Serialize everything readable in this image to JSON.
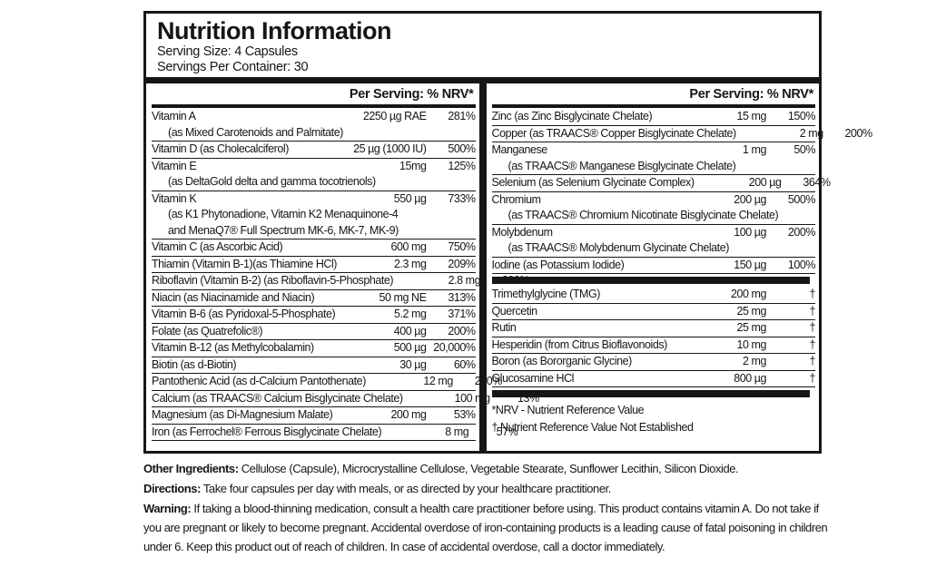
{
  "header": {
    "title": "Nutrition Information",
    "serving_size": "Serving Size: 4 Capsules",
    "servings_per_container": "Servings Per Container: 30"
  },
  "columns": {
    "header_label": "Per Serving: % NRV*",
    "left": {
      "rows": [
        {
          "name": "Vitamin A",
          "amount": "2250 µg RAE",
          "nrv": "281%",
          "sub": [
            "(as Mixed Carotenoids and Palmitate)"
          ]
        },
        {
          "name": "Vitamin D (as Cholecalciferol)",
          "amount": "25 µg (1000 IU)",
          "nrv": "500%"
        },
        {
          "name": "Vitamin E",
          "amount": "15mg",
          "nrv": "125%",
          "sub": [
            "(as DeltaGold delta and gamma tocotrienols)"
          ]
        },
        {
          "name": "Vitamin K",
          "amount": "550 µg",
          "nrv": "733%",
          "sub": [
            "(as K1 Phytonadione, Vitamin K2 Menaquinone-4",
            "and MenaQ7® Full Spectrum MK-6, MK-7, MK-9)"
          ]
        },
        {
          "name": "Vitamin C (as Ascorbic Acid)",
          "amount": "600 mg",
          "nrv": "750%"
        },
        {
          "name": "Thiamin (Vitamin B-1)(as Thiamine HCl)",
          "amount": "2.3 mg",
          "nrv": "209%"
        },
        {
          "name": "Riboflavin (Vitamin B-2) (as Riboflavin-5-Phosphate)",
          "amount": "2.8 mg",
          "nrv": "200%"
        },
        {
          "name": "Niacin (as Niacinamide and Niacin)",
          "amount": "50 mg NE",
          "nrv": "313%"
        },
        {
          "name": "Vitamin B-6 (as Pyridoxal-5-Phosphate)",
          "amount": "5.2 mg",
          "nrv": "371%"
        },
        {
          "name": "Folate (as Quatrefolic®)",
          "amount": "400 µg",
          "nrv": "200%"
        },
        {
          "name": "Vitamin B-12 (as Methylcobalamin)",
          "amount": "500 µg",
          "nrv": "20,000%"
        },
        {
          "name": "Biotin (as d-Biotin)",
          "amount": "30 µg",
          "nrv": "60%"
        },
        {
          "name": "Pantothenic Acid (as d-Calcium Pantothenate)",
          "amount": "12 mg",
          "nrv": "200%"
        },
        {
          "name": "Calcium (as TRAACS® Calcium Bisglycinate Chelate)",
          "amount": "100 mg",
          "nrv": "13%"
        },
        {
          "name": "Magnesium (as Di-Magnesium Malate)",
          "amount": "200 mg",
          "nrv": "53%"
        },
        {
          "name": "Iron (as Ferrochel® Ferrous Bisglycinate Chelate)",
          "amount": "8 mg",
          "nrv": "57%"
        }
      ]
    },
    "right": {
      "group1": [
        {
          "name": "Zinc (as Zinc Bisglycinate Chelate)",
          "amount": "15 mg",
          "nrv": "150%"
        },
        {
          "name": "Copper (as TRAACS® Copper Bisglycinate Chelate)",
          "amount": "2 mg",
          "nrv": "200%"
        },
        {
          "name": "Manganese",
          "amount": "1 mg",
          "nrv": "50%",
          "sub": [
            "(as TRAACS® Manganese Bisglycinate Chelate)"
          ]
        },
        {
          "name": "Selenium (as Selenium Glycinate Complex)",
          "amount": "200 µg",
          "nrv": "364%"
        },
        {
          "name": "Chromium",
          "amount": "200 µg",
          "nrv": "500%",
          "sub": [
            "(as TRAACS® Chromium Nicotinate Bisglycinate Chelate)"
          ]
        },
        {
          "name": "Molybdenum",
          "amount": "100 µg",
          "nrv": "200%",
          "sub": [
            "(as TRAACS® Molybdenum Glycinate Chelate)"
          ]
        },
        {
          "name": "Iodine (as Potassium Iodide)",
          "amount": "150 µg",
          "nrv": "100%"
        }
      ],
      "group2": [
        {
          "name": "Trimethylglycine (TMG)",
          "amount": "200 mg",
          "nrv": "†"
        },
        {
          "name": "Quercetin",
          "amount": "25 mg",
          "nrv": "†"
        },
        {
          "name": "Rutin",
          "amount": "25 mg",
          "nrv": "†"
        },
        {
          "name": "Hesperidin (from Citrus Bioflavonoids)",
          "amount": "10 mg",
          "nrv": "†"
        },
        {
          "name": "Boron (as Bororganic Glycine)",
          "amount": "2 mg",
          "nrv": "†"
        },
        {
          "name": "Glucosamine HCl",
          "amount": "800 µg",
          "nrv": "†"
        }
      ],
      "footnotes": [
        "*NRV - Nutrient Reference Value",
        "† Nutrient Reference Value Not Established"
      ]
    }
  },
  "bottom": {
    "other_ingredients": {
      "label": "Other Ingredients:",
      "text": " Cellulose (Capsule), Microcrystalline Cellulose, Vegetable Stearate, Sunflower Lecithin, Silicon Dioxide."
    },
    "directions": {
      "label": "Directions:",
      "text": " Take four capsules per day with meals, or as directed by your healthcare practitioner."
    },
    "warning": {
      "label": "Warning:",
      "text": " If taking a blood-thinning medication, consult a health care practitioner before using. This product contains vitamin A. Do not take if you are pregnant or likely to become pregnant. Accidental overdose of iron-containing products is a leading cause of fatal poisoning in children under 6. Keep this product out of reach of children. In case of accidental overdose, call a doctor immediately."
    }
  }
}
